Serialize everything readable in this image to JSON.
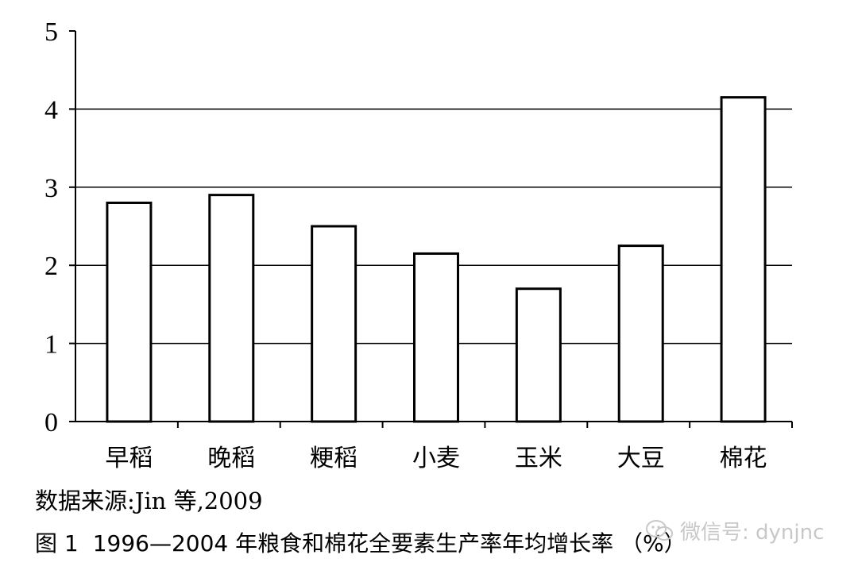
{
  "chart_data": {
    "type": "bar",
    "categories": [
      "早稻",
      "晚稻",
      "粳稻",
      "小麦",
      "玉米",
      "大豆",
      "棉花"
    ],
    "values": [
      2.8,
      2.9,
      2.5,
      2.15,
      1.7,
      2.25,
      4.15
    ],
    "ylim": [
      0,
      5
    ],
    "yticks": [
      "0",
      "1",
      "2",
      "3",
      "4",
      "5"
    ],
    "grid": true,
    "legend": "none"
  },
  "source": "数据来源:Jin 等,2009",
  "caption": {
    "figure_no": "图 1",
    "text": "1996—2004 年粮食和棉花全要素生产率年均增长率 （%）"
  },
  "watermark": {
    "text": "微信号: dynjnc",
    "icon": "wechat-icon"
  },
  "colors": {
    "bar_fill": "#ffffff",
    "bar_stroke": "#000000",
    "grid": "#000000",
    "watermark": "#bebebe"
  }
}
